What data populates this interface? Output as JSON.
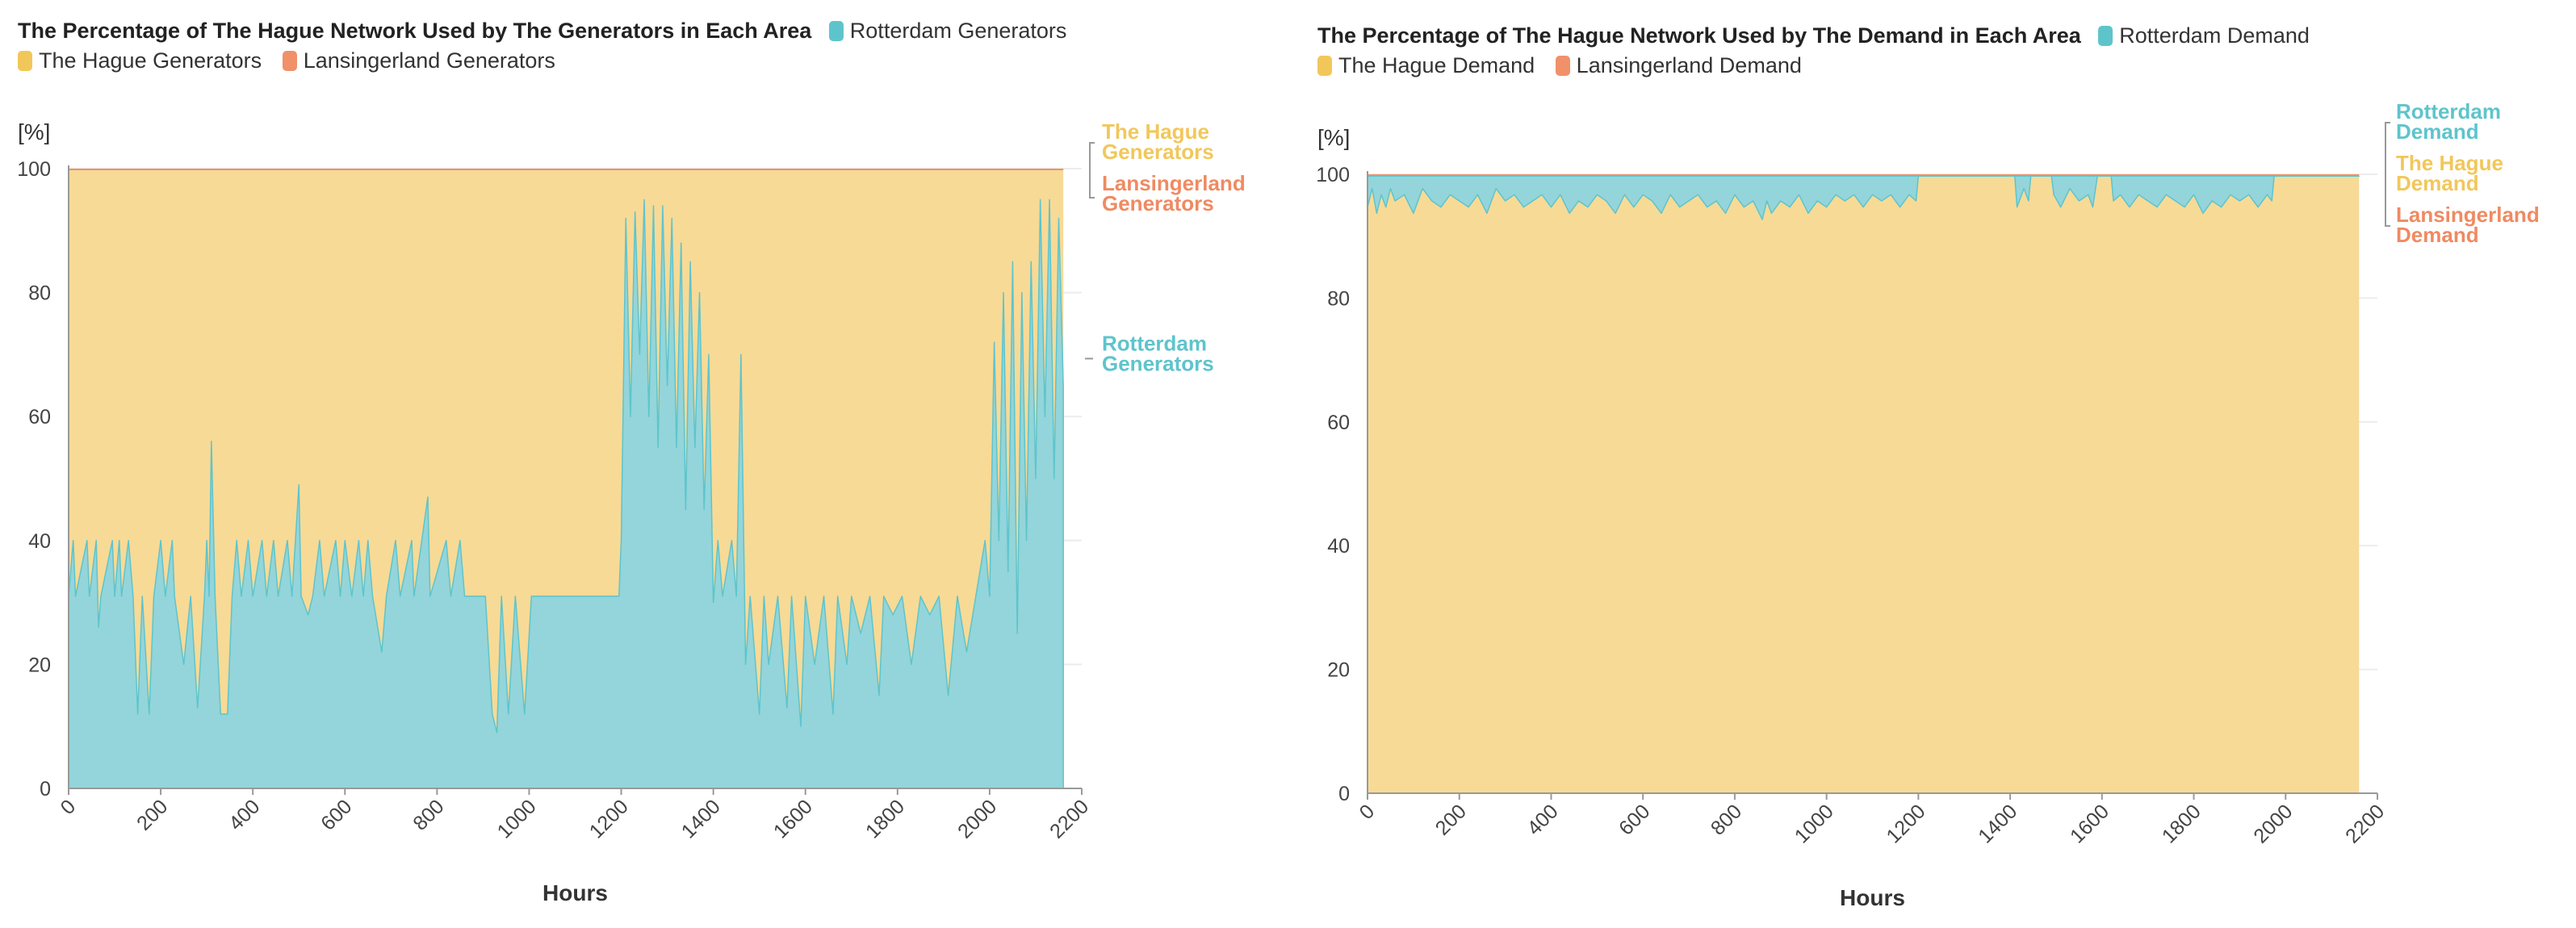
{
  "colors": {
    "rotterdam": "#93d5da",
    "rotterdam_line": "#5ec4cc",
    "hague": "#f7da96",
    "hague_line": "#f2c75a",
    "lansingerland": "#f0916a",
    "lansingerland_label": "#ef8a62",
    "grid": "#ececec",
    "axis": "#999999"
  },
  "chart_data": [
    {
      "type": "area",
      "stacked": true,
      "title": "The Percentage of The Hague Network Used by The Generators in Each Area",
      "xlabel": "Hours",
      "ylabel": "[%]",
      "xlim": [
        0,
        2200
      ],
      "ylim": [
        0,
        100
      ],
      "xticks": [
        "0",
        "200",
        "400",
        "600",
        "800",
        "1000",
        "1200",
        "1400",
        "1600",
        "1800",
        "2000",
        "2200"
      ],
      "yticks": [
        "0",
        "20",
        "40",
        "60",
        "80",
        "100"
      ],
      "grid": true,
      "legend": "top",
      "x_end": 2160,
      "series": [
        {
          "name": "Rotterdam Generators",
          "end_label": [
            "Rotterdam",
            "Generators"
          ],
          "points": [
            [
              0,
              31
            ],
            [
              10,
              40
            ],
            [
              15,
              31
            ],
            [
              40,
              40
            ],
            [
              45,
              31
            ],
            [
              60,
              40
            ],
            [
              65,
              26
            ],
            [
              70,
              31
            ],
            [
              95,
              40
            ],
            [
              100,
              31
            ],
            [
              110,
              40
            ],
            [
              115,
              31
            ],
            [
              130,
              40
            ],
            [
              140,
              31
            ],
            [
              150,
              12
            ],
            [
              160,
              31
            ],
            [
              175,
              12
            ],
            [
              185,
              31
            ],
            [
              200,
              40
            ],
            [
              210,
              31
            ],
            [
              225,
              40
            ],
            [
              230,
              31
            ],
            [
              250,
              20
            ],
            [
              265,
              31
            ],
            [
              280,
              13
            ],
            [
              295,
              31
            ],
            [
              300,
              40
            ],
            [
              305,
              31
            ],
            [
              310,
              56
            ],
            [
              318,
              31
            ],
            [
              330,
              12
            ],
            [
              345,
              12
            ],
            [
              355,
              31
            ],
            [
              365,
              40
            ],
            [
              375,
              31
            ],
            [
              390,
              40
            ],
            [
              400,
              31
            ],
            [
              420,
              40
            ],
            [
              430,
              31
            ],
            [
              445,
              40
            ],
            [
              455,
              31
            ],
            [
              475,
              40
            ],
            [
              485,
              31
            ],
            [
              500,
              49
            ],
            [
              505,
              31
            ],
            [
              520,
              28
            ],
            [
              530,
              31
            ],
            [
              545,
              40
            ],
            [
              555,
              31
            ],
            [
              580,
              40
            ],
            [
              590,
              31
            ],
            [
              600,
              40
            ],
            [
              615,
              31
            ],
            [
              630,
              40
            ],
            [
              640,
              31
            ],
            [
              650,
              40
            ],
            [
              660,
              31
            ],
            [
              680,
              22
            ],
            [
              690,
              31
            ],
            [
              710,
              40
            ],
            [
              720,
              31
            ],
            [
              745,
              40
            ],
            [
              750,
              31
            ],
            [
              780,
              47
            ],
            [
              785,
              31
            ],
            [
              820,
              40
            ],
            [
              830,
              31
            ],
            [
              850,
              40
            ],
            [
              860,
              31
            ],
            [
              890,
              31
            ],
            [
              905,
              31
            ],
            [
              920,
              12
            ],
            [
              930,
              9
            ],
            [
              940,
              31
            ],
            [
              955,
              12
            ],
            [
              970,
              31
            ],
            [
              990,
              12
            ],
            [
              1005,
              31
            ],
            [
              1060,
              31
            ],
            [
              1100,
              31
            ],
            [
              1150,
              31
            ],
            [
              1195,
              31
            ],
            [
              1200,
              40
            ],
            [
              1210,
              92
            ],
            [
              1220,
              60
            ],
            [
              1230,
              93
            ],
            [
              1240,
              70
            ],
            [
              1250,
              95
            ],
            [
              1260,
              60
            ],
            [
              1270,
              94
            ],
            [
              1280,
              55
            ],
            [
              1290,
              94
            ],
            [
              1300,
              65
            ],
            [
              1310,
              92
            ],
            [
              1320,
              55
            ],
            [
              1330,
              88
            ],
            [
              1340,
              45
            ],
            [
              1350,
              85
            ],
            [
              1360,
              55
            ],
            [
              1370,
              80
            ],
            [
              1380,
              45
            ],
            [
              1390,
              70
            ],
            [
              1400,
              30
            ],
            [
              1410,
              40
            ],
            [
              1420,
              31
            ],
            [
              1440,
              40
            ],
            [
              1450,
              31
            ],
            [
              1460,
              70
            ],
            [
              1470,
              20
            ],
            [
              1480,
              31
            ],
            [
              1500,
              12
            ],
            [
              1510,
              31
            ],
            [
              1520,
              20
            ],
            [
              1540,
              31
            ],
            [
              1560,
              13
            ],
            [
              1570,
              31
            ],
            [
              1590,
              10
            ],
            [
              1600,
              31
            ],
            [
              1620,
              20
            ],
            [
              1640,
              31
            ],
            [
              1660,
              12
            ],
            [
              1670,
              31
            ],
            [
              1690,
              20
            ],
            [
              1700,
              31
            ],
            [
              1720,
              25
            ],
            [
              1740,
              31
            ],
            [
              1760,
              15
            ],
            [
              1770,
              31
            ],
            [
              1790,
              28
            ],
            [
              1810,
              31
            ],
            [
              1830,
              20
            ],
            [
              1850,
              31
            ],
            [
              1870,
              28
            ],
            [
              1890,
              31
            ],
            [
              1910,
              15
            ],
            [
              1930,
              31
            ],
            [
              1950,
              22
            ],
            [
              1970,
              31
            ],
            [
              1990,
              40
            ],
            [
              2000,
              31
            ],
            [
              2010,
              72
            ],
            [
              2020,
              40
            ],
            [
              2030,
              80
            ],
            [
              2040,
              35
            ],
            [
              2050,
              85
            ],
            [
              2060,
              25
            ],
            [
              2070,
              80
            ],
            [
              2080,
              40
            ],
            [
              2090,
              85
            ],
            [
              2100,
              50
            ],
            [
              2110,
              95
            ],
            [
              2120,
              60
            ],
            [
              2130,
              95
            ],
            [
              2140,
              50
            ],
            [
              2150,
              92
            ],
            [
              2160,
              65
            ]
          ]
        },
        {
          "name": "The Hague Generators",
          "end_label": [
            "The Hague",
            "Generators"
          ]
        },
        {
          "name": "Lansingerland Generators",
          "end_label": [
            "Lansingerland",
            "Generators"
          ],
          "value": 0.2
        }
      ]
    },
    {
      "type": "area",
      "stacked": true,
      "title": "The Percentage of The Hague Network Used by The Demand in Each Area",
      "xlabel": "Hours",
      "ylabel": "[%]",
      "xlim": [
        0,
        2200
      ],
      "ylim": [
        0,
        100
      ],
      "xticks": [
        "0",
        "200",
        "400",
        "600",
        "800",
        "1000",
        "1200",
        "1400",
        "1600",
        "1800",
        "2000",
        "2200"
      ],
      "yticks": [
        "0",
        "20",
        "40",
        "60",
        "80",
        "100"
      ],
      "grid": true,
      "legend": "top",
      "x_end": 2160,
      "series": [
        {
          "name": "Rotterdam Demand",
          "end_label": [
            "Rotterdam",
            "Demand"
          ],
          "points": [
            [
              0,
              5
            ],
            [
              10,
              2
            ],
            [
              20,
              6
            ],
            [
              30,
              3
            ],
            [
              40,
              5
            ],
            [
              50,
              2
            ],
            [
              60,
              4
            ],
            [
              80,
              3
            ],
            [
              100,
              6
            ],
            [
              120,
              2
            ],
            [
              140,
              4
            ],
            [
              160,
              5
            ],
            [
              180,
              3
            ],
            [
              200,
              4
            ],
            [
              220,
              5
            ],
            [
              240,
              3
            ],
            [
              260,
              6
            ],
            [
              280,
              2
            ],
            [
              300,
              4
            ],
            [
              320,
              3
            ],
            [
              340,
              5
            ],
            [
              360,
              4
            ],
            [
              380,
              3
            ],
            [
              400,
              5
            ],
            [
              420,
              3
            ],
            [
              440,
              6
            ],
            [
              460,
              4
            ],
            [
              480,
              5
            ],
            [
              500,
              3
            ],
            [
              520,
              4
            ],
            [
              540,
              6
            ],
            [
              560,
              3
            ],
            [
              580,
              5
            ],
            [
              600,
              3
            ],
            [
              620,
              4
            ],
            [
              640,
              6
            ],
            [
              660,
              3
            ],
            [
              680,
              5
            ],
            [
              700,
              4
            ],
            [
              720,
              3
            ],
            [
              740,
              5
            ],
            [
              760,
              4
            ],
            [
              780,
              6
            ],
            [
              800,
              3
            ],
            [
              820,
              5
            ],
            [
              840,
              4
            ],
            [
              860,
              7
            ],
            [
              870,
              4
            ],
            [
              880,
              6
            ],
            [
              900,
              4
            ],
            [
              920,
              5
            ],
            [
              940,
              3
            ],
            [
              960,
              6
            ],
            [
              980,
              4
            ],
            [
              1000,
              5
            ],
            [
              1020,
              3
            ],
            [
              1040,
              4
            ],
            [
              1060,
              3
            ],
            [
              1080,
              5
            ],
            [
              1100,
              3
            ],
            [
              1120,
              4
            ],
            [
              1140,
              3
            ],
            [
              1160,
              5
            ],
            [
              1180,
              3
            ],
            [
              1195,
              4
            ],
            [
              1200,
              0
            ],
            [
              1410,
              0
            ],
            [
              1415,
              5
            ],
            [
              1430,
              2
            ],
            [
              1440,
              4
            ],
            [
              1445,
              0
            ],
            [
              1490,
              0
            ],
            [
              1495,
              3
            ],
            [
              1510,
              5
            ],
            [
              1530,
              2
            ],
            [
              1550,
              4
            ],
            [
              1570,
              3
            ],
            [
              1580,
              5
            ],
            [
              1590,
              0
            ],
            [
              1620,
              0
            ],
            [
              1625,
              4
            ],
            [
              1640,
              3
            ],
            [
              1660,
              5
            ],
            [
              1680,
              3
            ],
            [
              1700,
              4
            ],
            [
              1720,
              5
            ],
            [
              1740,
              3
            ],
            [
              1760,
              4
            ],
            [
              1780,
              5
            ],
            [
              1800,
              3
            ],
            [
              1820,
              6
            ],
            [
              1840,
              4
            ],
            [
              1860,
              5
            ],
            [
              1880,
              3
            ],
            [
              1900,
              4
            ],
            [
              1920,
              3
            ],
            [
              1940,
              5
            ],
            [
              1960,
              3
            ],
            [
              1970,
              4
            ],
            [
              1975,
              0
            ],
            [
              2160,
              0
            ]
          ]
        },
        {
          "name": "The Hague Demand",
          "end_label": [
            "The Hague",
            "Demand"
          ]
        },
        {
          "name": "Lansingerland Demand",
          "end_label": [
            "Lansingerland",
            "Demand"
          ],
          "value": 0.3
        }
      ]
    }
  ]
}
